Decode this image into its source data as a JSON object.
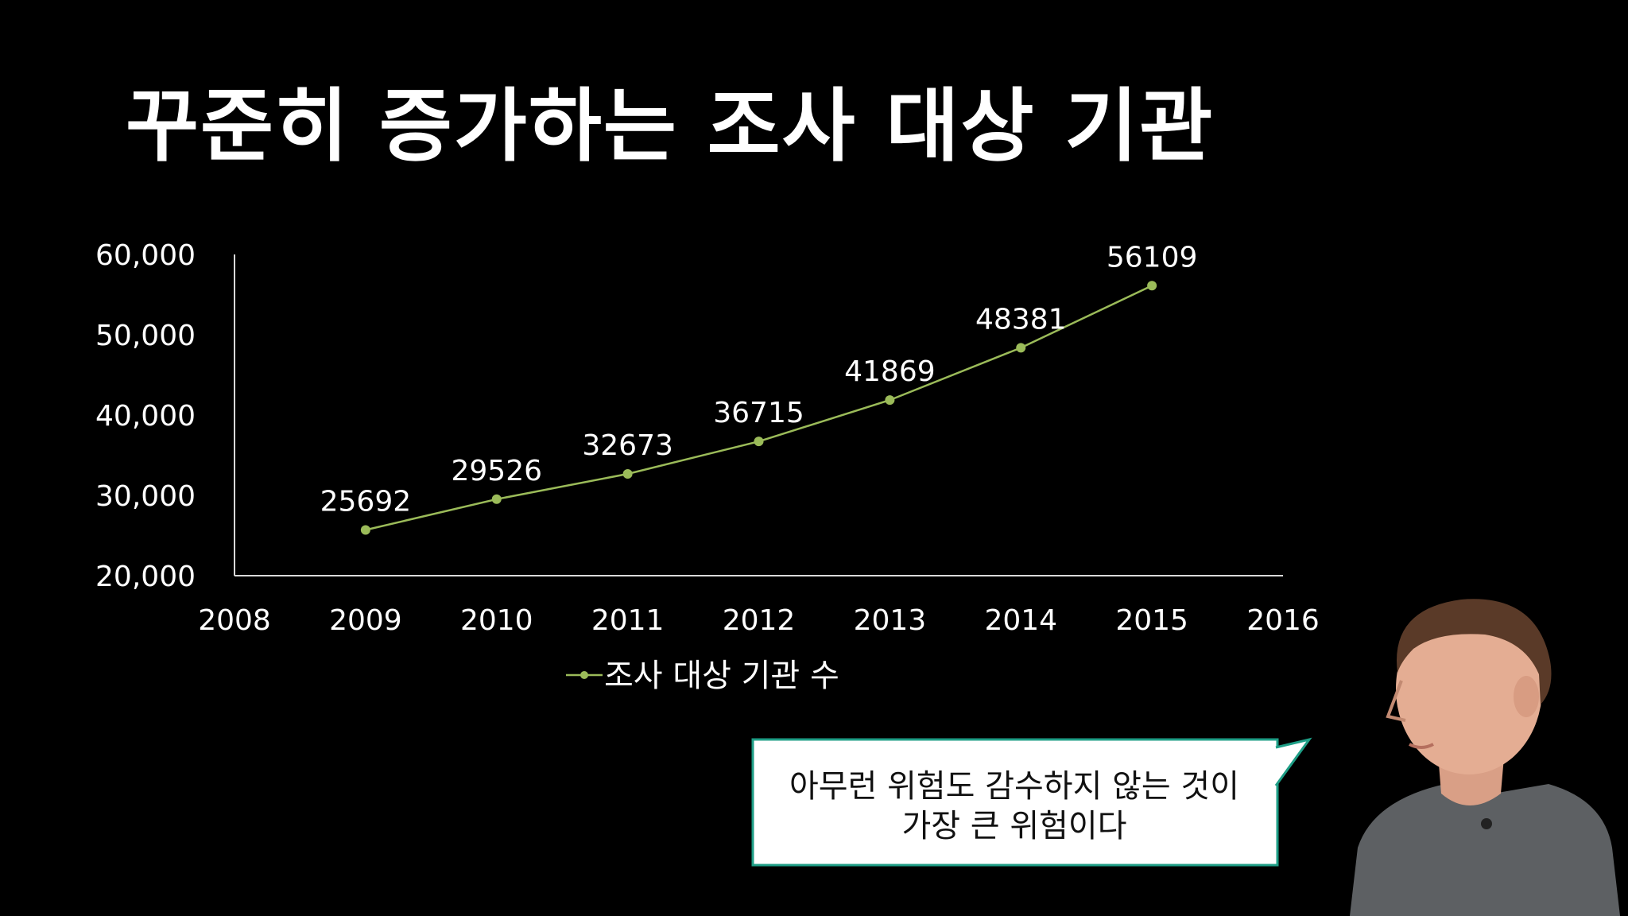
{
  "title": "꾸준히 증가하는 조사 대상 기관",
  "chart_data": {
    "type": "line",
    "x": [
      2009,
      2010,
      2011,
      2012,
      2013,
      2014,
      2015
    ],
    "series": [
      {
        "name": "조사 대상 기관 수",
        "values": [
          25692,
          29526,
          32673,
          36715,
          41869,
          48381,
          56109
        ],
        "data_labels": [
          "25692",
          "29526",
          "32673",
          "36715",
          "41869",
          "48381",
          "56109"
        ],
        "color": "#9bbb59"
      }
    ],
    "xlim": [
      2008,
      2016
    ],
    "ylim": [
      20000,
      60000
    ],
    "x_ticks": [
      "2008",
      "2009",
      "2010",
      "2011",
      "2012",
      "2013",
      "2014",
      "2015",
      "2016"
    ],
    "y_ticks": [
      "20,000",
      "30,000",
      "40,000",
      "50,000",
      "60,000"
    ],
    "y_tick_values": [
      20000,
      30000,
      40000,
      50000,
      60000
    ],
    "grid": false,
    "legend_position": "bottom",
    "xlabel": "",
    "ylabel": ""
  },
  "callout": {
    "line1": "아무런 위험도 감수하지 않는 것이",
    "line2": "가장 큰 위험이다",
    "background": "#ffffff",
    "border": "#1e9e86"
  },
  "colors": {
    "background": "#000000",
    "text": "#ffffff",
    "axis": "#d9d9d9",
    "line": "#9bbb59"
  }
}
